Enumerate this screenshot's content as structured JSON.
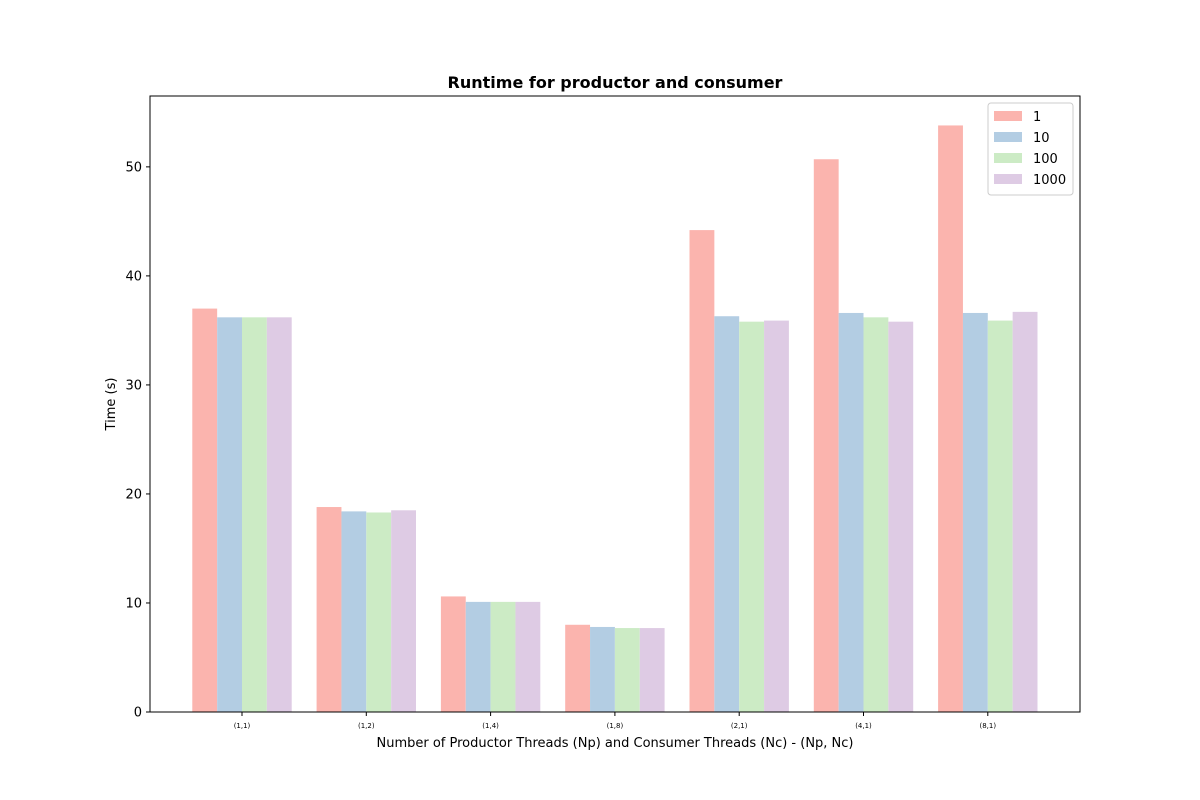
{
  "chart_data": {
    "type": "bar",
    "title": "Runtime for productor and consumer",
    "xlabel": "Number of Productor Threads (Np) and Consumer Threads (Nc) - (Np, Nc)",
    "ylabel": "Time (s)",
    "categories": [
      "(1,1)",
      "(1,2)",
      "(1,4)",
      "(1,8)",
      "(2,1)",
      "(4,1)",
      "(8,1)"
    ],
    "ylim": [
      0,
      56.5
    ],
    "yticks": [
      0,
      10,
      20,
      30,
      40,
      50
    ],
    "grid": false,
    "legend_position": "top-right",
    "series": [
      {
        "name": "1",
        "color": "#fbb4ae",
        "values": [
          37.0,
          18.8,
          10.6,
          8.0,
          44.2,
          50.7,
          53.8
        ]
      },
      {
        "name": "10",
        "color": "#b3cde3",
        "values": [
          36.2,
          18.4,
          10.1,
          7.8,
          36.3,
          36.6,
          36.6
        ]
      },
      {
        "name": "100",
        "color": "#ccebc5",
        "values": [
          36.2,
          18.3,
          10.1,
          7.7,
          35.8,
          36.2,
          35.9
        ]
      },
      {
        "name": "1000",
        "color": "#decbe4",
        "values": [
          36.2,
          18.5,
          10.1,
          7.7,
          35.9,
          35.8,
          36.7
        ]
      }
    ]
  }
}
